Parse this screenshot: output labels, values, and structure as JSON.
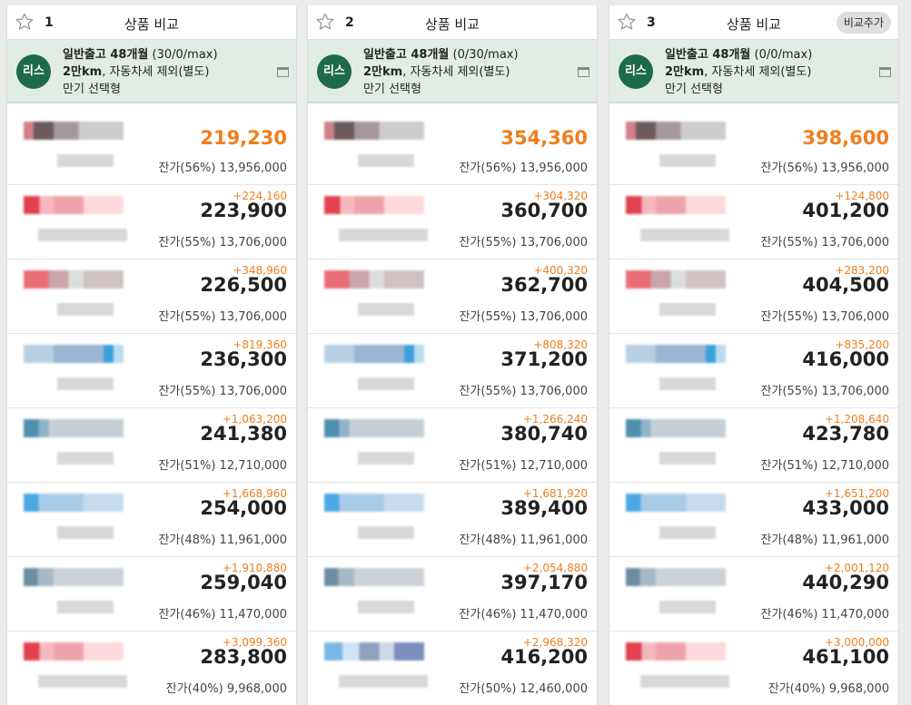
{
  "common": {
    "title": "상품 비교",
    "add_label": "비교추가",
    "badge": "리스",
    "line2_bold": "2만km",
    "line2_rest": ", 자동차세 제외(별도)",
    "line3": "만기 선택형",
    "line1_bold": "일반출고 48개월"
  },
  "columns": [
    {
      "num": "1",
      "line1_rest": " (30/0/max)",
      "rows": [
        {
          "diff": "",
          "price": "219,230",
          "resid": "잔가(56%) 13,956,000"
        },
        {
          "diff": "+224,160",
          "price": "223,900",
          "resid": "잔가(55%) 13,706,000"
        },
        {
          "diff": "+348,960",
          "price": "226,500",
          "resid": "잔가(55%) 13,706,000"
        },
        {
          "diff": "+819,360",
          "price": "236,300",
          "resid": "잔가(55%) 13,706,000"
        },
        {
          "diff": "+1,063,200",
          "price": "241,380",
          "resid": "잔가(51%) 12,710,000"
        },
        {
          "diff": "+1,668,960",
          "price": "254,000",
          "resid": "잔가(48%) 11,961,000"
        },
        {
          "diff": "+1,910,880",
          "price": "259,040",
          "resid": "잔가(46%) 11,470,000"
        },
        {
          "diff": "+3,099,360",
          "price": "283,800",
          "resid": "잔가(40%) 9,968,000"
        }
      ]
    },
    {
      "num": "2",
      "line1_rest": " (0/30/max)",
      "rows": [
        {
          "diff": "",
          "price": "354,360",
          "resid": "잔가(56%) 13,956,000"
        },
        {
          "diff": "+304,320",
          "price": "360,700",
          "resid": "잔가(55%) 13,706,000"
        },
        {
          "diff": "+400,320",
          "price": "362,700",
          "resid": "잔가(55%) 13,706,000"
        },
        {
          "diff": "+808,320",
          "price": "371,200",
          "resid": "잔가(55%) 13,706,000"
        },
        {
          "diff": "+1,266,240",
          "price": "380,740",
          "resid": "잔가(51%) 12,710,000"
        },
        {
          "diff": "+1,681,920",
          "price": "389,400",
          "resid": "잔가(48%) 11,961,000"
        },
        {
          "diff": "+2,054,880",
          "price": "397,170",
          "resid": "잔가(46%) 11,470,000"
        },
        {
          "diff": "+2,968,320",
          "price": "416,200",
          "resid": "잔가(50%) 12,460,000"
        }
      ]
    },
    {
      "num": "3",
      "line1_rest": " (0/0/max)",
      "rows": [
        {
          "diff": "",
          "price": "398,600",
          "resid": "잔가(56%) 13,956,000"
        },
        {
          "diff": "+124,800",
          "price": "401,200",
          "resid": "잔가(55%) 13,706,000"
        },
        {
          "diff": "+283,200",
          "price": "404,500",
          "resid": "잔가(55%) 13,706,000"
        },
        {
          "diff": "+835,200",
          "price": "416,000",
          "resid": "잔가(55%) 13,706,000"
        },
        {
          "diff": "+1,208,640",
          "price": "423,780",
          "resid": "잔가(51%) 12,710,000"
        },
        {
          "diff": "+1,651,200",
          "price": "433,000",
          "resid": "잔가(48%) 11,961,000"
        },
        {
          "diff": "+2,001,120",
          "price": "440,290",
          "resid": "잔가(46%) 11,470,000"
        },
        {
          "diff": "+3,000,000",
          "price": "461,100",
          "resid": "잔가(40%) 9,968,000"
        }
      ]
    }
  ],
  "logo_styles": [
    "r-dark",
    "r-red",
    "r-red2",
    "r-blue",
    "r-blue2",
    "r-lblue",
    "r-gray",
    "r-red"
  ],
  "logo_styles_col2_last": "r-mix",
  "icons": {
    "star": "star-icon",
    "window": "window-icon"
  },
  "colors": {
    "accent": "#f07e1d",
    "badge": "#1e6b4c",
    "condition_bg": "#e1ede4"
  }
}
